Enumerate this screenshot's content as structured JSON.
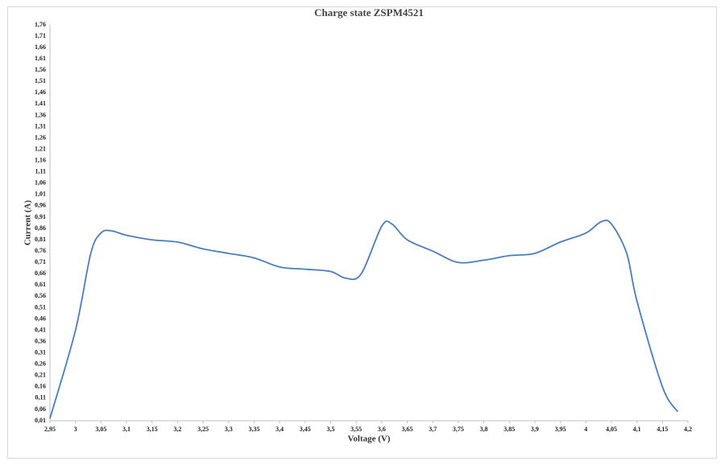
{
  "chart_data": {
    "type": "line",
    "title": "Charge state ZSPM4521",
    "x_label": "Voltage (V)",
    "y_label": "Current (A)",
    "x": [
      2.95,
      3.0,
      3.03,
      3.05,
      3.07,
      3.1,
      3.15,
      3.2,
      3.25,
      3.3,
      3.35,
      3.4,
      3.45,
      3.5,
      3.53,
      3.56,
      3.6,
      3.62,
      3.65,
      3.7,
      3.75,
      3.8,
      3.85,
      3.9,
      3.95,
      4.0,
      4.03,
      4.05,
      4.08,
      4.1,
      4.15,
      4.18
    ],
    "series": [
      {
        "name": "Current",
        "color": "#4a7ebb",
        "values": [
          0.02,
          0.41,
          0.75,
          0.84,
          0.85,
          0.83,
          0.81,
          0.8,
          0.77,
          0.75,
          0.73,
          0.69,
          0.68,
          0.67,
          0.64,
          0.66,
          0.87,
          0.88,
          0.81,
          0.76,
          0.71,
          0.72,
          0.74,
          0.75,
          0.8,
          0.84,
          0.89,
          0.88,
          0.75,
          0.54,
          0.16,
          0.05
        ]
      }
    ],
    "xlim": [
      2.95,
      4.2
    ],
    "ylim": [
      0.01,
      1.76
    ],
    "xticks": [
      {
        "value": 2.95,
        "label": "2,95"
      },
      3,
      {
        "value": 3.05,
        "label": "3,05"
      },
      {
        "value": 3.1,
        "label": "3,1"
      },
      {
        "value": 3.15,
        "label": "3,15"
      },
      {
        "value": 3.2,
        "label": "3,2"
      },
      {
        "value": 3.25,
        "label": "3,25"
      },
      {
        "value": 3.3,
        "label": "3,3"
      },
      {
        "value": 3.35,
        "label": "3,35"
      },
      {
        "value": 3.4,
        "label": "3,4"
      },
      {
        "value": 3.45,
        "label": "3,45"
      },
      {
        "value": 3.5,
        "label": "3,5"
      },
      {
        "value": 3.55,
        "label": "3,55"
      },
      {
        "value": 3.6,
        "label": "3,6"
      },
      {
        "value": 3.65,
        "label": "3,65"
      },
      {
        "value": 3.7,
        "label": "3,7"
      },
      {
        "value": 3.75,
        "label": "3,75"
      },
      {
        "value": 3.8,
        "label": "3,8"
      },
      {
        "value": 3.85,
        "label": "3,85"
      },
      {
        "value": 3.9,
        "label": "3,9"
      },
      {
        "value": 3.95,
        "label": "3,95"
      },
      4,
      {
        "value": 4.05,
        "label": "4,05"
      },
      {
        "value": 4.1,
        "label": "4,1"
      },
      {
        "value": 4.15,
        "label": "4,15"
      },
      {
        "value": 4.2,
        "label": "4,2"
      }
    ],
    "yticks": [
      {
        "value": 0.01,
        "label": "0,01"
      },
      {
        "value": 0.06,
        "label": "0,06"
      },
      {
        "value": 0.11,
        "label": "0,11"
      },
      {
        "value": 0.16,
        "label": "0,16"
      },
      {
        "value": 0.21,
        "label": "0,21"
      },
      {
        "value": 0.26,
        "label": "0,26"
      },
      {
        "value": 0.31,
        "label": "0,31"
      },
      {
        "value": 0.36,
        "label": "0,36"
      },
      {
        "value": 0.41,
        "label": "0,41"
      },
      {
        "value": 0.46,
        "label": "0,46"
      },
      {
        "value": 0.51,
        "label": "0,51"
      },
      {
        "value": 0.56,
        "label": "0,56"
      },
      {
        "value": 0.61,
        "label": "0,61"
      },
      {
        "value": 0.66,
        "label": "0,66"
      },
      {
        "value": 0.71,
        "label": "0,71"
      },
      {
        "value": 0.76,
        "label": "0,76"
      },
      {
        "value": 0.81,
        "label": "0,81"
      },
      {
        "value": 0.86,
        "label": "0,86"
      },
      {
        "value": 0.91,
        "label": "0,91"
      },
      {
        "value": 0.96,
        "label": "0,96"
      },
      {
        "value": 1.01,
        "label": "1,01"
      },
      {
        "value": 1.06,
        "label": "1,06"
      },
      {
        "value": 1.11,
        "label": "1,11"
      },
      {
        "value": 1.16,
        "label": "1,16"
      },
      {
        "value": 1.21,
        "label": "1,21"
      },
      {
        "value": 1.26,
        "label": "1,26"
      },
      {
        "value": 1.31,
        "label": "1,31"
      },
      {
        "value": 1.36,
        "label": "1,36"
      },
      {
        "value": 1.41,
        "label": "1,41"
      },
      {
        "value": 1.46,
        "label": "1,46"
      },
      {
        "value": 1.51,
        "label": "1,51"
      },
      {
        "value": 1.56,
        "label": "1,56"
      },
      {
        "value": 1.61,
        "label": "1,61"
      },
      {
        "value": 1.66,
        "label": "1,66"
      },
      {
        "value": 1.71,
        "label": "1,71"
      },
      {
        "value": 1.76,
        "label": "1,76"
      }
    ],
    "grid": false
  }
}
